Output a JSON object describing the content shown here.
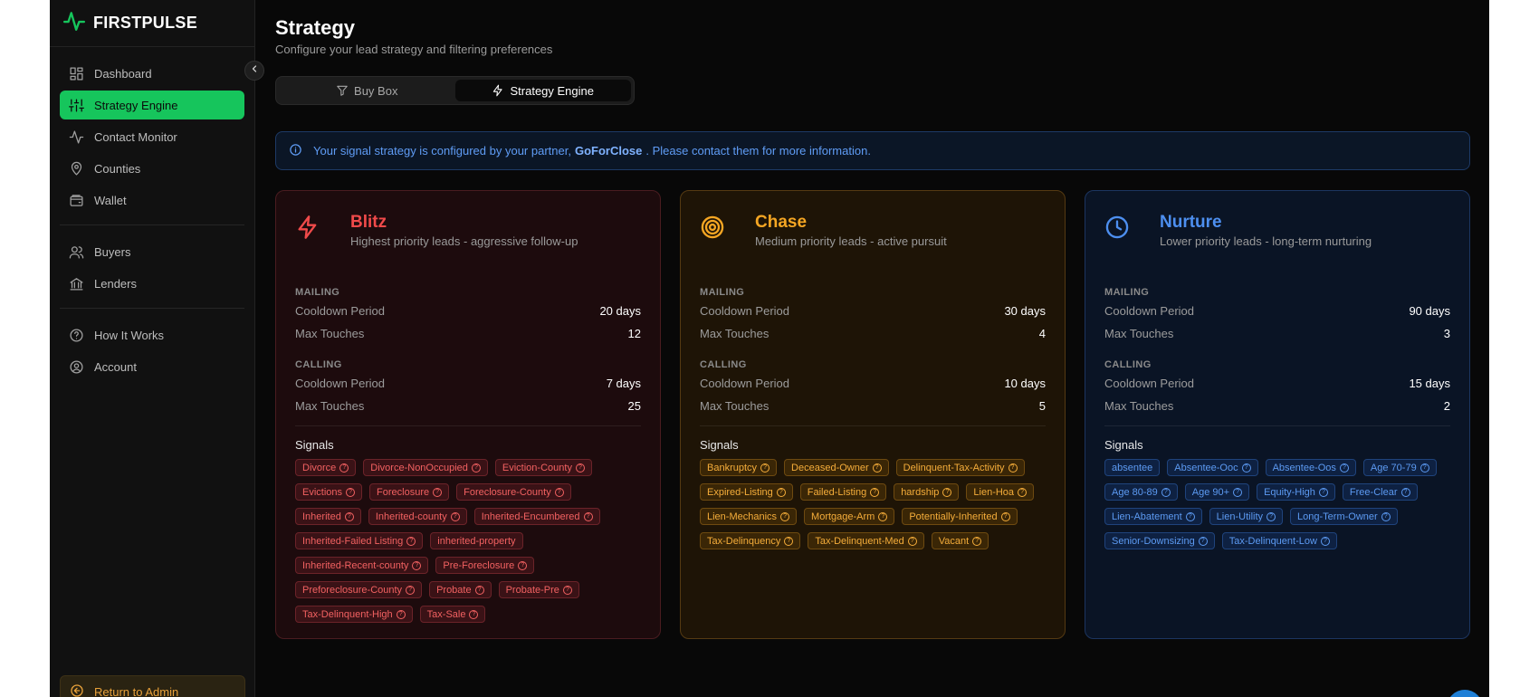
{
  "brand": {
    "name": "FIRSTPULSE"
  },
  "sidebar": {
    "groups": [
      [
        {
          "label": "Dashboard",
          "icon": "dashboard-icon"
        },
        {
          "label": "Strategy Engine",
          "icon": "sliders-icon",
          "active": true
        },
        {
          "label": "Contact Monitor",
          "icon": "activity-icon"
        },
        {
          "label": "Counties",
          "icon": "map-pin-icon"
        },
        {
          "label": "Wallet",
          "icon": "wallet-icon"
        }
      ],
      [
        {
          "label": "Buyers",
          "icon": "users-icon"
        },
        {
          "label": "Lenders",
          "icon": "bank-icon"
        }
      ],
      [
        {
          "label": "How It Works",
          "icon": "help-circle-icon"
        },
        {
          "label": "Account",
          "icon": "user-circle-icon"
        }
      ]
    ],
    "return_label": "Return to Admin"
  },
  "page": {
    "title": "Strategy",
    "subtitle": "Configure your lead strategy and filtering preferences"
  },
  "tabs": [
    {
      "label": "Buy Box",
      "icon": "filter-icon",
      "active": false
    },
    {
      "label": "Strategy Engine",
      "icon": "bolt-icon",
      "active": true
    }
  ],
  "info": {
    "before": "Your signal strategy is configured by your partner,",
    "partner": "GoForClose",
    "after": ". Please contact them for more information."
  },
  "labels": {
    "mailing": "MAILING",
    "calling": "CALLING",
    "cooldown": "Cooldown Period",
    "max_touches": "Max Touches",
    "signals": "Signals"
  },
  "cards": [
    {
      "key": "blitz",
      "title": "Blitz",
      "desc": "Highest priority leads - aggressive follow-up",
      "icon": "bolt-icon",
      "color": "#f04a4a",
      "mailing": {
        "cooldown": "20 days",
        "max_touches": "12"
      },
      "calling": {
        "cooldown": "7 days",
        "max_touches": "25"
      },
      "signals": [
        {
          "label": "Divorce",
          "q": true
        },
        {
          "label": "Divorce-NonOccupied",
          "q": true
        },
        {
          "label": "Eviction-County",
          "q": true
        },
        {
          "label": "Evictions",
          "q": true
        },
        {
          "label": "Foreclosure",
          "q": true
        },
        {
          "label": "Foreclosure-County",
          "q": true
        },
        {
          "label": "Inherited",
          "q": true
        },
        {
          "label": "Inherited-county",
          "q": true
        },
        {
          "label": "Inherited-Encumbered",
          "q": true
        },
        {
          "label": "Inherited-Failed Listing",
          "q": true
        },
        {
          "label": "inherited-property",
          "q": false
        },
        {
          "label": "Inherited-Recent-county",
          "q": true
        },
        {
          "label": "Pre-Foreclosure",
          "q": true
        },
        {
          "label": "Preforeclosure-County",
          "q": true
        },
        {
          "label": "Probate",
          "q": true
        },
        {
          "label": "Probate-Pre",
          "q": true
        },
        {
          "label": "Tax-Delinquent-High",
          "q": true
        },
        {
          "label": "Tax-Sale",
          "q": true
        }
      ]
    },
    {
      "key": "chase",
      "title": "Chase",
      "desc": "Medium priority leads - active pursuit",
      "icon": "target-icon",
      "color": "#f5a623",
      "mailing": {
        "cooldown": "30 days",
        "max_touches": "4"
      },
      "calling": {
        "cooldown": "10 days",
        "max_touches": "5"
      },
      "signals": [
        {
          "label": "Bankruptcy",
          "q": true
        },
        {
          "label": "Deceased-Owner",
          "q": true
        },
        {
          "label": "Delinquent-Tax-Activity",
          "q": true
        },
        {
          "label": "Expired-Listing",
          "q": true
        },
        {
          "label": "Failed-Listing",
          "q": true
        },
        {
          "label": "hardship",
          "q": true
        },
        {
          "label": "Lien-Hoa",
          "q": true
        },
        {
          "label": "Lien-Mechanics",
          "q": true
        },
        {
          "label": "Mortgage-Arm",
          "q": true
        },
        {
          "label": "Potentially-Inherited",
          "q": true
        },
        {
          "label": "Tax-Delinquency",
          "q": true
        },
        {
          "label": "Tax-Delinquent-Med",
          "q": true
        },
        {
          "label": "Vacant",
          "q": true
        }
      ]
    },
    {
      "key": "nurture",
      "title": "Nurture",
      "desc": "Lower priority leads - long-term nurturing",
      "icon": "clock-icon",
      "color": "#4d8ff0",
      "mailing": {
        "cooldown": "90 days",
        "max_touches": "3"
      },
      "calling": {
        "cooldown": "15 days",
        "max_touches": "2"
      },
      "signals": [
        {
          "label": "absentee",
          "q": false
        },
        {
          "label": "Absentee-Ooc",
          "q": true
        },
        {
          "label": "Absentee-Oos",
          "q": true
        },
        {
          "label": "Age 70-79",
          "q": true
        },
        {
          "label": "Age 80-89",
          "q": true
        },
        {
          "label": "Age 90+",
          "q": true
        },
        {
          "label": "Equity-High",
          "q": true
        },
        {
          "label": "Free-Clear",
          "q": true
        },
        {
          "label": "Lien-Abatement",
          "q": true
        },
        {
          "label": "Lien-Utility",
          "q": true
        },
        {
          "label": "Long-Term-Owner",
          "q": true
        },
        {
          "label": "Senior-Downsizing",
          "q": true
        },
        {
          "label": "Tax-Delinquent-Low",
          "q": true
        }
      ]
    }
  ]
}
